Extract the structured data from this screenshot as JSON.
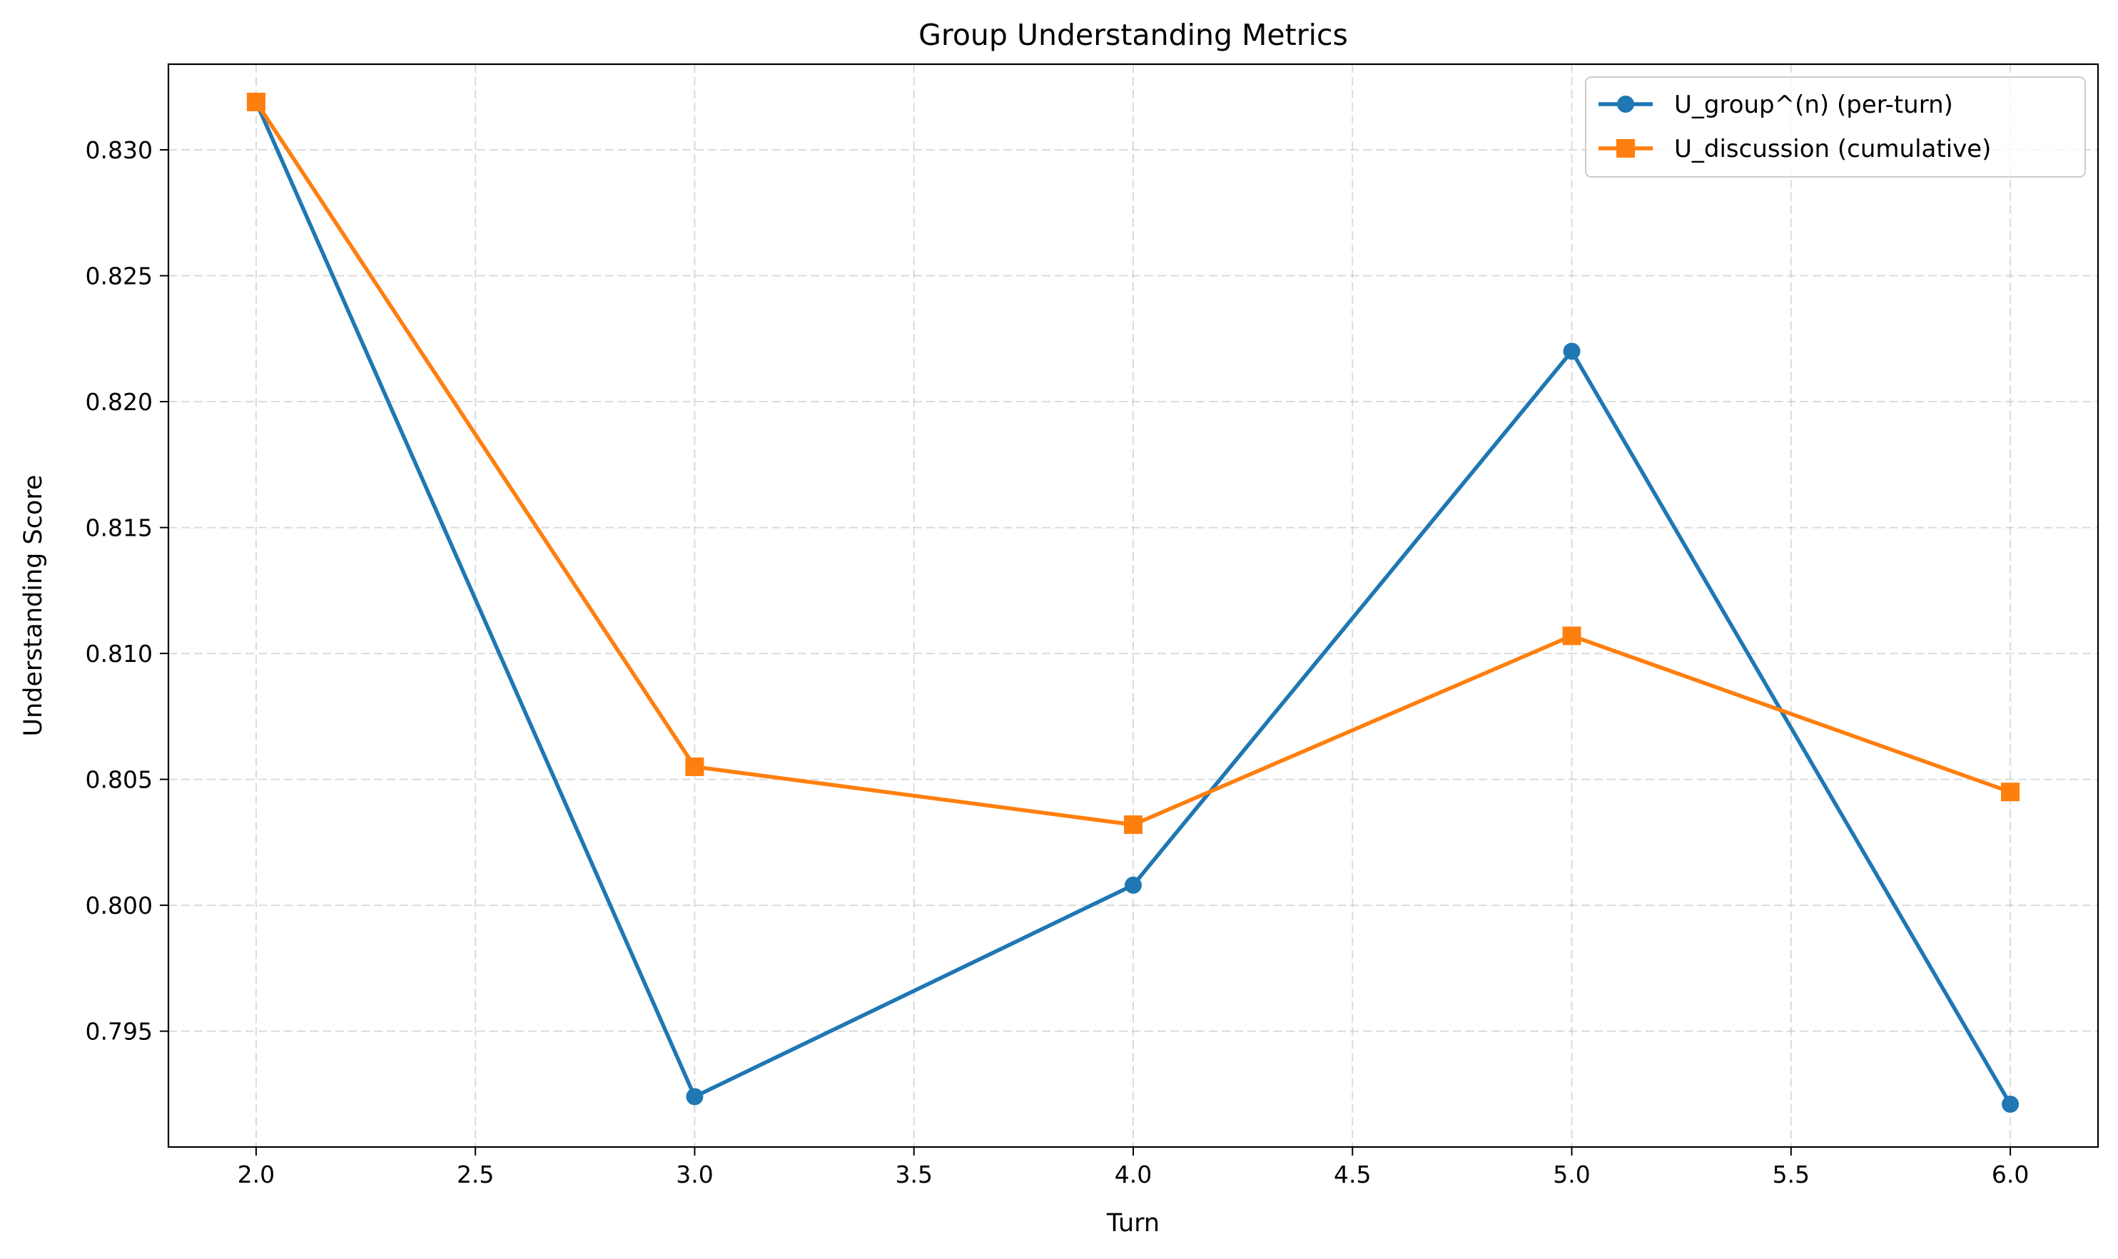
{
  "chart_data": {
    "type": "line",
    "title": "Group Understanding Metrics",
    "xlabel": "Turn",
    "ylabel": "Understanding Score",
    "xlim": [
      1.8,
      6.2
    ],
    "ylim": [
      0.7904,
      0.8334
    ],
    "xticks": [
      2.0,
      2.5,
      3.0,
      3.5,
      4.0,
      4.5,
      5.0,
      5.5,
      6.0
    ],
    "xtick_labels": [
      "2.0",
      "2.5",
      "3.0",
      "3.5",
      "4.0",
      "4.5",
      "5.0",
      "5.5",
      "6.0"
    ],
    "yticks": [
      0.795,
      0.8,
      0.805,
      0.81,
      0.815,
      0.82,
      0.825,
      0.83
    ],
    "ytick_labels": [
      "0.795",
      "0.800",
      "0.805",
      "0.810",
      "0.815",
      "0.820",
      "0.825",
      "0.830"
    ],
    "grid": true,
    "legend_position": "top-right",
    "x": [
      2,
      3,
      4,
      5,
      6
    ],
    "series": [
      {
        "name": "U_group^(n) (per-turn)",
        "color": "#1f77b4",
        "marker": "circle",
        "values": [
          0.8319,
          0.7924,
          0.8008,
          0.822,
          0.7921
        ]
      },
      {
        "name": "U_discussion (cumulative)",
        "color": "#ff7f0e",
        "marker": "square",
        "values": [
          0.8319,
          0.8055,
          0.8032,
          0.8107,
          0.8045
        ]
      }
    ]
  }
}
